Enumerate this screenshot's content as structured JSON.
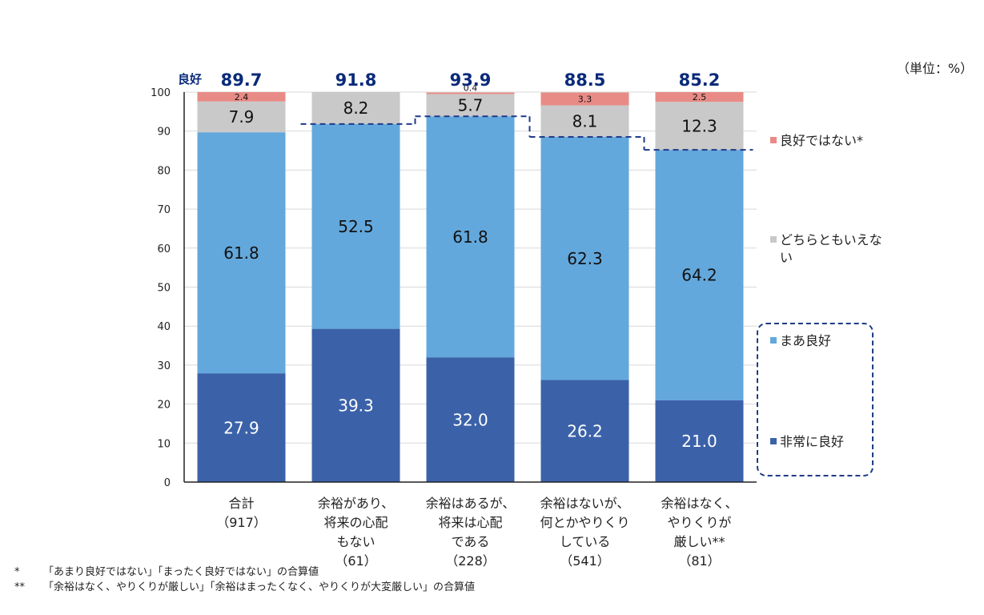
{
  "unit_label": "（単位：%）",
  "good_label": "良好",
  "footnotes": [
    {
      "mark": "*",
      "text": "「あまり良好ではない」「まったく良好ではない」の合算値"
    },
    {
      "mark": "**",
      "text": "「余裕はなく、やりくりが厳しい」「余裕はまったくなく、やりくりが大変厳しい」の合算値"
    }
  ],
  "legend": [
    {
      "label": "良好ではない*",
      "color": "#e88b86"
    },
    {
      "label": "どちらともいえない",
      "color": "#c9c9c9"
    },
    {
      "label": "まあ良好",
      "color": "#63a8dc"
    },
    {
      "label": "非常に良好",
      "color": "#3b62a9"
    }
  ],
  "chart_data": {
    "type": "bar",
    "stacked": true,
    "ylim": [
      0,
      100
    ],
    "yticks": [
      0,
      10,
      20,
      30,
      40,
      50,
      60,
      70,
      80,
      90,
      100
    ],
    "categories": [
      {
        "lines": [
          "合計",
          "（917）"
        ]
      },
      {
        "lines": [
          "余裕があり、",
          "将来の心配",
          "もない",
          "（61）"
        ]
      },
      {
        "lines": [
          "余裕はあるが、",
          "将来は心配",
          "である",
          "（228）"
        ]
      },
      {
        "lines": [
          "余裕はないが、",
          "何とかやりくり",
          "している",
          "（541）"
        ]
      },
      {
        "lines": [
          "余裕はなく、",
          "やりくりが",
          "厳しい**",
          "（81）"
        ]
      }
    ],
    "series": [
      {
        "name": "非常に良好",
        "color": "#3b62a9",
        "values": [
          27.9,
          39.3,
          32.0,
          26.2,
          21.0
        ],
        "labels": [
          "27.9",
          "39.3",
          "32.0",
          "26.2",
          "21.0"
        ]
      },
      {
        "name": "まあ良好",
        "color": "#63a8dc",
        "values": [
          61.8,
          52.5,
          61.8,
          62.3,
          64.2
        ],
        "labels": [
          "61.8",
          "52.5",
          "61.8",
          "62.3",
          "64.2"
        ]
      },
      {
        "name": "どちらともいえない",
        "color": "#c9c9c9",
        "values": [
          7.9,
          8.2,
          5.7,
          8.1,
          12.3
        ],
        "labels": [
          "7.9",
          "8.2",
          "5.7",
          "8.1",
          "12.3"
        ]
      },
      {
        "name": "良好ではない*",
        "color": "#e88b86",
        "values": [
          2.4,
          0.0,
          0.4,
          3.3,
          2.5
        ],
        "labels": [
          "2.4",
          "",
          "0.4",
          "3.3",
          "2.5"
        ]
      }
    ],
    "good_totals": [
      "89.7",
      "91.8",
      "93.9",
      "88.5",
      "85.2"
    ]
  }
}
